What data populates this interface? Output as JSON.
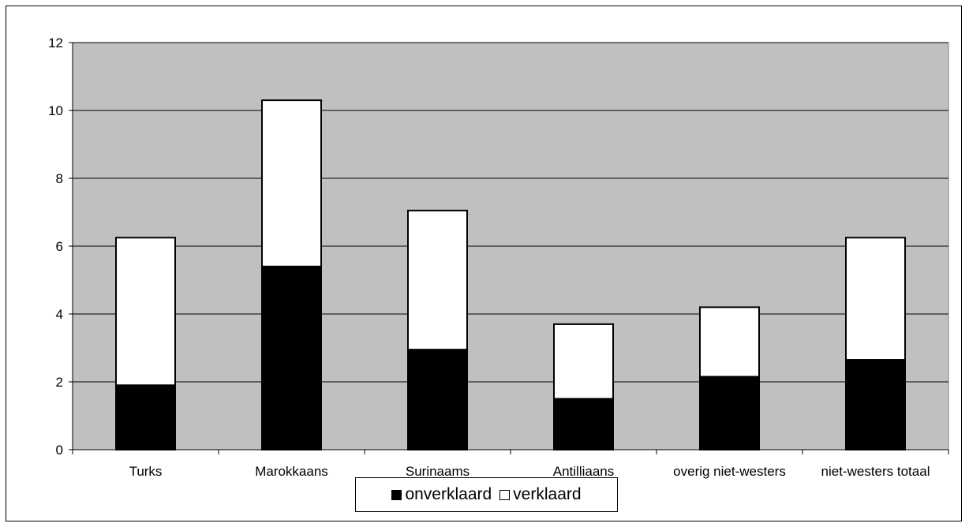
{
  "chart_data": {
    "type": "bar",
    "stacked": true,
    "categories": [
      "Turks",
      "Marokkaans",
      "Surinaams",
      "Antilliaans",
      "overig niet-westers",
      "niet-westers totaal"
    ],
    "series": [
      {
        "name": "onverklaard",
        "values": [
          1.9,
          5.4,
          2.95,
          1.5,
          2.15,
          2.65
        ],
        "color": "#000000"
      },
      {
        "name": "verklaard",
        "values": [
          4.35,
          4.9,
          4.1,
          2.2,
          2.05,
          3.6
        ],
        "color": "#ffffff"
      }
    ],
    "ylim": [
      0,
      12
    ],
    "yticks": [
      0,
      2,
      4,
      6,
      8,
      10,
      12
    ],
    "grid": true,
    "plot_background": "#c0c0c0",
    "legend_position": "bottom"
  }
}
